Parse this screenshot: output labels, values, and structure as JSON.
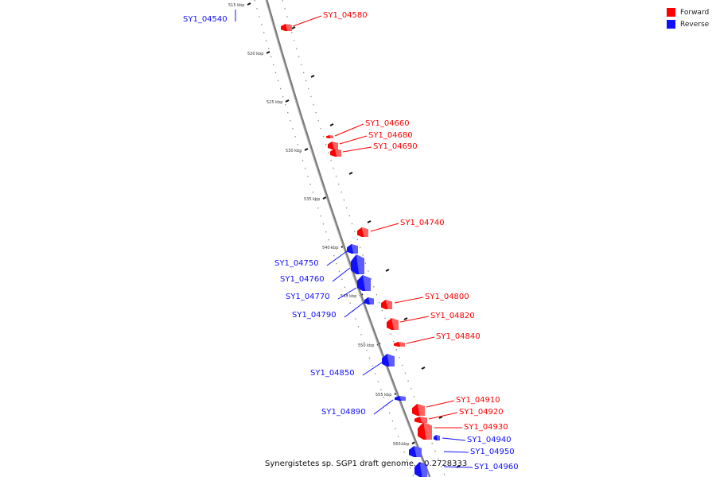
{
  "legend": {
    "forward_label": "Forward",
    "reverse_label": "Reverse",
    "forward_color": "#ff0000",
    "reverse_color": "#1010ff"
  },
  "caption": "Synergistetes sp. SGP1 draft genome. - 0.2728333",
  "ticks": [
    "515 kbp",
    "520 kbp",
    "525 kbp",
    "530 kbp",
    "535 kbp",
    "540 kbp",
    "545 kbp",
    "550 kbp",
    "555 kbp",
    "560 kbp"
  ],
  "genes": [
    {
      "name": "SY1_04540",
      "strand": "reverse"
    },
    {
      "name": "SY1_04580",
      "strand": "forward"
    },
    {
      "name": "SY1_04660",
      "strand": "forward"
    },
    {
      "name": "SY1_04680",
      "strand": "forward"
    },
    {
      "name": "SY1_04690",
      "strand": "forward"
    },
    {
      "name": "SY1_04740",
      "strand": "forward"
    },
    {
      "name": "SY1_04750",
      "strand": "reverse"
    },
    {
      "name": "SY1_04760",
      "strand": "reverse"
    },
    {
      "name": "SY1_04770",
      "strand": "reverse"
    },
    {
      "name": "SY1_04790",
      "strand": "reverse"
    },
    {
      "name": "SY1_04800",
      "strand": "forward"
    },
    {
      "name": "SY1_04820",
      "strand": "forward"
    },
    {
      "name": "SY1_04840",
      "strand": "forward"
    },
    {
      "name": "SY1_04850",
      "strand": "reverse"
    },
    {
      "name": "SY1_04890",
      "strand": "reverse"
    },
    {
      "name": "SY1_04910",
      "strand": "forward"
    },
    {
      "name": "SY1_04920",
      "strand": "forward"
    },
    {
      "name": "SY1_04930",
      "strand": "forward"
    },
    {
      "name": "SY1_04940",
      "strand": "reverse"
    },
    {
      "name": "SY1_04950",
      "strand": "reverse"
    },
    {
      "name": "SY1_04960",
      "strand": "reverse"
    }
  ]
}
